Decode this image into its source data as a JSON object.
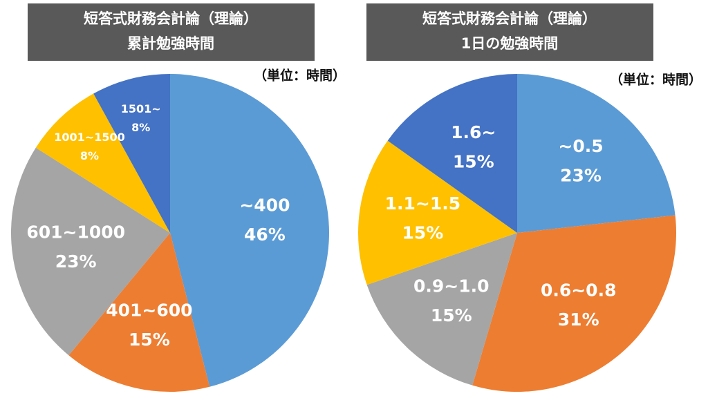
{
  "chart_data": [
    {
      "type": "pie",
      "title": "短答式財務会計論（理論）",
      "subtitle": "累計勉強時間",
      "unit": "（単位：時間）",
      "categories": [
        "~400",
        "401~600",
        "601~1000",
        "1001~1500",
        "1501~"
      ],
      "values": [
        46,
        15,
        23,
        8,
        8
      ],
      "value_labels": [
        "46%",
        "15%",
        "23%",
        "8%",
        "8%"
      ],
      "colors": [
        "#5b9bd5",
        "#ed7d31",
        "#a5a5a5",
        "#ffc000",
        "#4472c4"
      ]
    },
    {
      "type": "pie",
      "title": "短答式財務会計論（理論）",
      "subtitle": "1日の勉強時間",
      "unit": "（単位：時間）",
      "categories": [
        "~0.5",
        "0.6~0.8",
        "0.9~1.0",
        "1.1~1.5",
        "1.6~"
      ],
      "values": [
        23,
        31,
        15,
        15,
        15
      ],
      "value_labels": [
        "23%",
        "31%",
        "15%",
        "15%",
        "15%"
      ],
      "colors": [
        "#5b9bd5",
        "#ed7d31",
        "#a5a5a5",
        "#ffc000",
        "#4472c4"
      ]
    }
  ]
}
